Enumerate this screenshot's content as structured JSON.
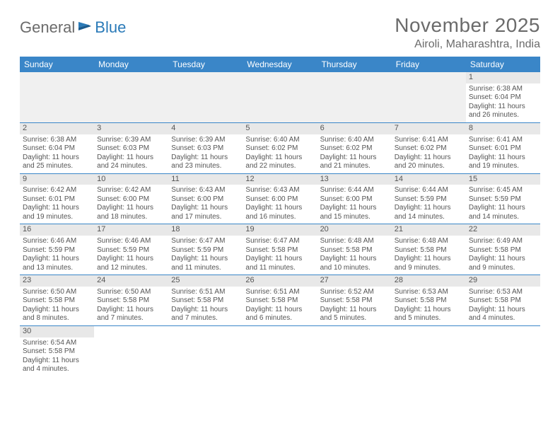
{
  "logo": {
    "general": "General",
    "blue": "Blue"
  },
  "title": "November 2025",
  "location": "Airoli, Maharashtra, India",
  "colors": {
    "header_bg": "#3a86c8",
    "header_text": "#ffffff",
    "day_num_bg": "#e8e8e8",
    "border": "#3a86c8",
    "text": "#555555",
    "title_text": "#6b6b6b",
    "logo_gray": "#6b6b6b",
    "logo_blue": "#2a7ab8",
    "blank_bg": "#f0f0f0"
  },
  "weekdays": [
    "Sunday",
    "Monday",
    "Tuesday",
    "Wednesday",
    "Thursday",
    "Friday",
    "Saturday"
  ],
  "weeks": [
    [
      null,
      null,
      null,
      null,
      null,
      null,
      {
        "n": "1",
        "sr": "Sunrise: 6:38 AM",
        "ss": "Sunset: 6:04 PM",
        "d1": "Daylight: 11 hours",
        "d2": "and 26 minutes."
      }
    ],
    [
      {
        "n": "2",
        "sr": "Sunrise: 6:38 AM",
        "ss": "Sunset: 6:04 PM",
        "d1": "Daylight: 11 hours",
        "d2": "and 25 minutes."
      },
      {
        "n": "3",
        "sr": "Sunrise: 6:39 AM",
        "ss": "Sunset: 6:03 PM",
        "d1": "Daylight: 11 hours",
        "d2": "and 24 minutes."
      },
      {
        "n": "4",
        "sr": "Sunrise: 6:39 AM",
        "ss": "Sunset: 6:03 PM",
        "d1": "Daylight: 11 hours",
        "d2": "and 23 minutes."
      },
      {
        "n": "5",
        "sr": "Sunrise: 6:40 AM",
        "ss": "Sunset: 6:02 PM",
        "d1": "Daylight: 11 hours",
        "d2": "and 22 minutes."
      },
      {
        "n": "6",
        "sr": "Sunrise: 6:40 AM",
        "ss": "Sunset: 6:02 PM",
        "d1": "Daylight: 11 hours",
        "d2": "and 21 minutes."
      },
      {
        "n": "7",
        "sr": "Sunrise: 6:41 AM",
        "ss": "Sunset: 6:02 PM",
        "d1": "Daylight: 11 hours",
        "d2": "and 20 minutes."
      },
      {
        "n": "8",
        "sr": "Sunrise: 6:41 AM",
        "ss": "Sunset: 6:01 PM",
        "d1": "Daylight: 11 hours",
        "d2": "and 19 minutes."
      }
    ],
    [
      {
        "n": "9",
        "sr": "Sunrise: 6:42 AM",
        "ss": "Sunset: 6:01 PM",
        "d1": "Daylight: 11 hours",
        "d2": "and 19 minutes."
      },
      {
        "n": "10",
        "sr": "Sunrise: 6:42 AM",
        "ss": "Sunset: 6:00 PM",
        "d1": "Daylight: 11 hours",
        "d2": "and 18 minutes."
      },
      {
        "n": "11",
        "sr": "Sunrise: 6:43 AM",
        "ss": "Sunset: 6:00 PM",
        "d1": "Daylight: 11 hours",
        "d2": "and 17 minutes."
      },
      {
        "n": "12",
        "sr": "Sunrise: 6:43 AM",
        "ss": "Sunset: 6:00 PM",
        "d1": "Daylight: 11 hours",
        "d2": "and 16 minutes."
      },
      {
        "n": "13",
        "sr": "Sunrise: 6:44 AM",
        "ss": "Sunset: 6:00 PM",
        "d1": "Daylight: 11 hours",
        "d2": "and 15 minutes."
      },
      {
        "n": "14",
        "sr": "Sunrise: 6:44 AM",
        "ss": "Sunset: 5:59 PM",
        "d1": "Daylight: 11 hours",
        "d2": "and 14 minutes."
      },
      {
        "n": "15",
        "sr": "Sunrise: 6:45 AM",
        "ss": "Sunset: 5:59 PM",
        "d1": "Daylight: 11 hours",
        "d2": "and 14 minutes."
      }
    ],
    [
      {
        "n": "16",
        "sr": "Sunrise: 6:46 AM",
        "ss": "Sunset: 5:59 PM",
        "d1": "Daylight: 11 hours",
        "d2": "and 13 minutes."
      },
      {
        "n": "17",
        "sr": "Sunrise: 6:46 AM",
        "ss": "Sunset: 5:59 PM",
        "d1": "Daylight: 11 hours",
        "d2": "and 12 minutes."
      },
      {
        "n": "18",
        "sr": "Sunrise: 6:47 AM",
        "ss": "Sunset: 5:59 PM",
        "d1": "Daylight: 11 hours",
        "d2": "and 11 minutes."
      },
      {
        "n": "19",
        "sr": "Sunrise: 6:47 AM",
        "ss": "Sunset: 5:58 PM",
        "d1": "Daylight: 11 hours",
        "d2": "and 11 minutes."
      },
      {
        "n": "20",
        "sr": "Sunrise: 6:48 AM",
        "ss": "Sunset: 5:58 PM",
        "d1": "Daylight: 11 hours",
        "d2": "and 10 minutes."
      },
      {
        "n": "21",
        "sr": "Sunrise: 6:48 AM",
        "ss": "Sunset: 5:58 PM",
        "d1": "Daylight: 11 hours",
        "d2": "and 9 minutes."
      },
      {
        "n": "22",
        "sr": "Sunrise: 6:49 AM",
        "ss": "Sunset: 5:58 PM",
        "d1": "Daylight: 11 hours",
        "d2": "and 9 minutes."
      }
    ],
    [
      {
        "n": "23",
        "sr": "Sunrise: 6:50 AM",
        "ss": "Sunset: 5:58 PM",
        "d1": "Daylight: 11 hours",
        "d2": "and 8 minutes."
      },
      {
        "n": "24",
        "sr": "Sunrise: 6:50 AM",
        "ss": "Sunset: 5:58 PM",
        "d1": "Daylight: 11 hours",
        "d2": "and 7 minutes."
      },
      {
        "n": "25",
        "sr": "Sunrise: 6:51 AM",
        "ss": "Sunset: 5:58 PM",
        "d1": "Daylight: 11 hours",
        "d2": "and 7 minutes."
      },
      {
        "n": "26",
        "sr": "Sunrise: 6:51 AM",
        "ss": "Sunset: 5:58 PM",
        "d1": "Daylight: 11 hours",
        "d2": "and 6 minutes."
      },
      {
        "n": "27",
        "sr": "Sunrise: 6:52 AM",
        "ss": "Sunset: 5:58 PM",
        "d1": "Daylight: 11 hours",
        "d2": "and 5 minutes."
      },
      {
        "n": "28",
        "sr": "Sunrise: 6:53 AM",
        "ss": "Sunset: 5:58 PM",
        "d1": "Daylight: 11 hours",
        "d2": "and 5 minutes."
      },
      {
        "n": "29",
        "sr": "Sunrise: 6:53 AM",
        "ss": "Sunset: 5:58 PM",
        "d1": "Daylight: 11 hours",
        "d2": "and 4 minutes."
      }
    ],
    [
      {
        "n": "30",
        "sr": "Sunrise: 6:54 AM",
        "ss": "Sunset: 5:58 PM",
        "d1": "Daylight: 11 hours",
        "d2": "and 4 minutes."
      },
      null,
      null,
      null,
      null,
      null,
      null
    ]
  ]
}
